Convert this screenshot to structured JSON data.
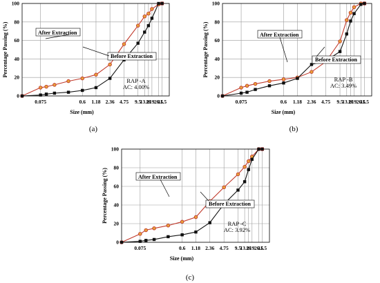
{
  "chart_data": [
    {
      "type": "line",
      "caption": "(a)",
      "xlabel": "Size (mm)",
      "ylabel": "Percentage Passing (%)",
      "ylim": [
        0,
        100
      ],
      "y_ticks": [
        0,
        20,
        40,
        60,
        80,
        100
      ],
      "x_ticks": [
        "0.075",
        "0.6",
        "1.18",
        "2.36",
        "4.75",
        "9.5",
        "13.2",
        "16",
        "19",
        "26.5",
        "31.5"
      ],
      "info_lines": [
        "RAP -A",
        "AC: 4.00%"
      ],
      "annotations": {
        "after": "After Extraction",
        "before": "Before Extraction"
      },
      "grid": true,
      "series": [
        {
          "name": "After Extraction",
          "color": "#c0392b",
          "marker": "circle",
          "x": [
            0.03,
            0.075,
            0.1,
            0.15,
            0.3,
            0.6,
            1.18,
            2.36,
            4.75,
            9.5,
            13.2,
            16,
            19,
            26.5,
            31.5
          ],
          "y": [
            0,
            9,
            10,
            12,
            16,
            19,
            23,
            34,
            56,
            76,
            86,
            89,
            94,
            99,
            100
          ]
        },
        {
          "name": "Before Extraction",
          "color": "#111111",
          "marker": "square",
          "x": [
            0.03,
            0.075,
            0.1,
            0.15,
            0.3,
            0.6,
            1.18,
            2.36,
            4.75,
            9.5,
            13.2,
            16,
            19,
            26.5,
            31.5
          ],
          "y": [
            0,
            1,
            2,
            3,
            4,
            6,
            9,
            19,
            39,
            57,
            69,
            76,
            84,
            100,
            100
          ]
        }
      ]
    },
    {
      "type": "line",
      "caption": "(b)",
      "xlabel": "Size (mm)",
      "ylabel": "Percentage Passing (%)",
      "ylim": [
        0,
        100
      ],
      "y_ticks": [
        0,
        20,
        40,
        60,
        80,
        100
      ],
      "x_ticks": [
        "0.075",
        "0.6",
        "1.18",
        "2.36",
        "4.75",
        "9.5",
        "13.2",
        "16",
        "19",
        "26.5",
        "31.5"
      ],
      "info_lines": [
        "RAP -B",
        "AC: 3.49%"
      ],
      "annotations": {
        "after": "After Extraction",
        "before": "Before Extraction"
      },
      "grid": true,
      "series": [
        {
          "name": "After Extraction",
          "color": "#c0392b",
          "marker": "circle",
          "x": [
            0.03,
            0.075,
            0.1,
            0.15,
            0.3,
            0.6,
            1.18,
            2.36,
            4.75,
            9.5,
            13.2,
            16,
            19,
            26.5,
            31.5
          ],
          "y": [
            0,
            9,
            11,
            13,
            16,
            18,
            20,
            26,
            37,
            59,
            82,
            90,
            96,
            100,
            100
          ]
        },
        {
          "name": "Before Extraction",
          "color": "#111111",
          "marker": "square",
          "x": [
            0.03,
            0.075,
            0.1,
            0.15,
            0.3,
            0.6,
            1.18,
            2.36,
            4.75,
            9.5,
            13.2,
            16,
            19,
            26.5,
            31.5
          ],
          "y": [
            0,
            3,
            4,
            7,
            11,
            14,
            19,
            34,
            38,
            48,
            67,
            81,
            89,
            99,
            100
          ]
        }
      ]
    },
    {
      "type": "line",
      "caption": "(c)",
      "xlabel": "Size (mm)",
      "ylabel": "Percentage Passing (%)",
      "ylim": [
        0,
        100
      ],
      "y_ticks": [
        0,
        20,
        40,
        60,
        80,
        100
      ],
      "x_ticks": [
        "0.075",
        "0.6",
        "1.18",
        "2.36",
        "4.75",
        "9.5",
        "13.2",
        "16",
        "19",
        "26.5",
        "31.5"
      ],
      "info_lines": [
        "RAP -C",
        "AC: 3.92%"
      ],
      "annotations": {
        "after": "After Extraction",
        "before": "Before Extraction"
      },
      "grid": true,
      "series": [
        {
          "name": "After Extraction",
          "color": "#c0392b",
          "marker": "circle",
          "x": [
            0.03,
            0.075,
            0.1,
            0.15,
            0.3,
            0.6,
            1.18,
            2.36,
            4.75,
            9.5,
            13.2,
            16,
            19,
            26.5,
            31.5
          ],
          "y": [
            0,
            9,
            13,
            15,
            18,
            22,
            27,
            44,
            59,
            73,
            81,
            87,
            92,
            100,
            100
          ]
        },
        {
          "name": "Before Extraction",
          "color": "#111111",
          "marker": "square",
          "x": [
            0.03,
            0.075,
            0.1,
            0.15,
            0.3,
            0.6,
            1.18,
            2.36,
            4.75,
            9.5,
            13.2,
            16,
            19,
            26.5,
            31.5
          ],
          "y": [
            0,
            1,
            2,
            3,
            6,
            8,
            11,
            21,
            41,
            56,
            65,
            78,
            89,
            100,
            100
          ]
        }
      ]
    }
  ]
}
